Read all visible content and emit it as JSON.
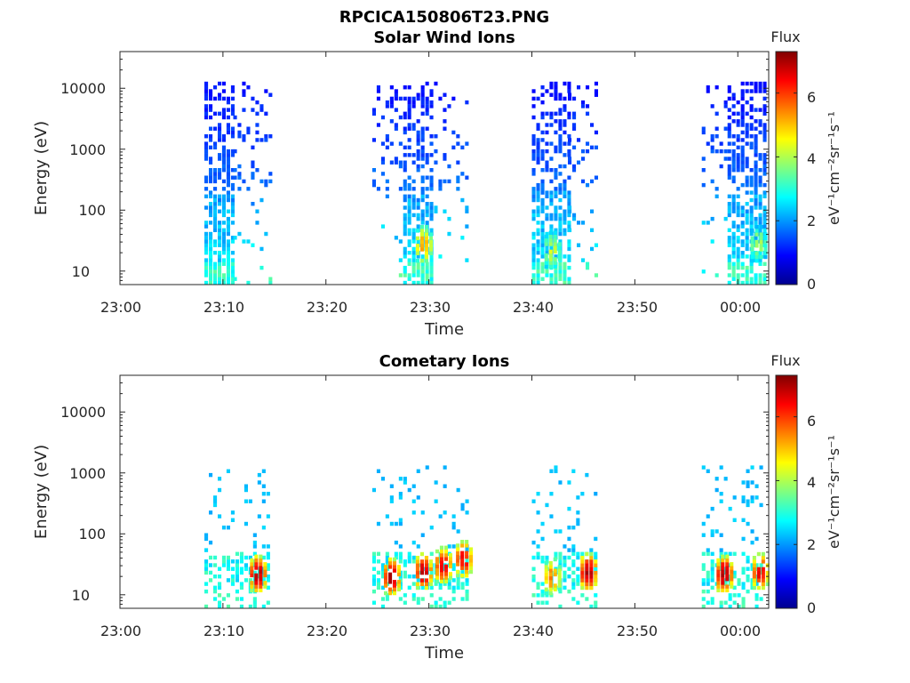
{
  "figure_title": "RPCICA150806T23.PNG",
  "chart_data": [
    {
      "type": "heatmap",
      "title": "Solar Wind Ions",
      "xlabel": "Time",
      "ylabel": "Energy (eV)",
      "x_ticks": [
        "23:00",
        "23:10",
        "23:20",
        "23:30",
        "23:40",
        "23:50",
        "00:00"
      ],
      "x_range_minutes": [
        0,
        63
      ],
      "y_scale": "log",
      "y_ticks": [
        "10",
        "100",
        "1000",
        "10000"
      ],
      "y_range_ev": [
        6,
        40000
      ],
      "colorbar": {
        "label": "eV⁻¹cm⁻²sr⁻¹s⁻¹",
        "title": "Flux",
        "range": [
          0,
          7.3
        ],
        "ticks": [
          "0",
          "2",
          "4",
          "6"
        ],
        "colormap": "jet"
      },
      "bursts": [
        {
          "start_min": 8.2,
          "end_min": 11.0,
          "dense": true
        },
        {
          "start_min": 11.0,
          "end_min": 14.5,
          "dense": false
        },
        {
          "start_min": 24.5,
          "end_min": 27.5,
          "dense": false
        },
        {
          "start_min": 27.5,
          "end_min": 30.5,
          "dense": true
        },
        {
          "start_min": 30.5,
          "end_min": 33.8,
          "dense": false
        },
        {
          "start_min": 40.0,
          "end_min": 43.5,
          "dense": true
        },
        {
          "start_min": 43.5,
          "end_min": 46.2,
          "dense": false
        },
        {
          "start_min": 56.5,
          "end_min": 59.0,
          "dense": false
        },
        {
          "start_min": 59.0,
          "end_min": 62.5,
          "dense": true
        }
      ],
      "peaks": [
        {
          "t_min": 29.3,
          "energy_ev": 25,
          "flux": 5.2
        },
        {
          "t_min": 41.8,
          "energy_ev": 20,
          "flux": 4.2
        },
        {
          "t_min": 61.8,
          "energy_ev": 25,
          "flux": 4.0
        }
      ]
    },
    {
      "type": "heatmap",
      "title": "Cometary Ions",
      "xlabel": "Time",
      "ylabel": "Energy (eV)",
      "x_ticks": [
        "23:00",
        "23:10",
        "23:20",
        "23:30",
        "23:40",
        "23:50",
        "00:00"
      ],
      "x_range_minutes": [
        0,
        63
      ],
      "y_scale": "log",
      "y_ticks": [
        "10",
        "100",
        "1000",
        "10000"
      ],
      "y_range_ev": [
        6,
        40000
      ],
      "colorbar": {
        "label": "eV⁻¹cm⁻²sr⁻¹s⁻¹",
        "title": "Flux",
        "range": [
          0,
          7.3
        ],
        "ticks": [
          "0",
          "2",
          "4",
          "6"
        ],
        "colormap": "jet"
      },
      "bursts": [
        {
          "start_min": 8.2,
          "end_min": 14.5,
          "dense": false
        },
        {
          "start_min": 24.5,
          "end_min": 33.8,
          "dense": false
        },
        {
          "start_min": 40.0,
          "end_min": 46.2,
          "dense": false
        },
        {
          "start_min": 56.5,
          "end_min": 62.5,
          "dense": false
        }
      ],
      "peaks": [
        {
          "t_min": 13.2,
          "energy_ev": 20,
          "flux": 7.0
        },
        {
          "t_min": 26.2,
          "energy_ev": 18,
          "flux": 7.0
        },
        {
          "t_min": 29.3,
          "energy_ev": 22,
          "flux": 6.8
        },
        {
          "t_min": 31.2,
          "energy_ev": 28,
          "flux": 6.5
        },
        {
          "t_min": 33.2,
          "energy_ev": 35,
          "flux": 6.5
        },
        {
          "t_min": 41.8,
          "energy_ev": 18,
          "flux": 5.5
        },
        {
          "t_min": 45.3,
          "energy_ev": 22,
          "flux": 7.0
        },
        {
          "t_min": 58.5,
          "energy_ev": 20,
          "flux": 7.0
        },
        {
          "t_min": 62.0,
          "energy_ev": 22,
          "flux": 6.5
        }
      ]
    }
  ]
}
